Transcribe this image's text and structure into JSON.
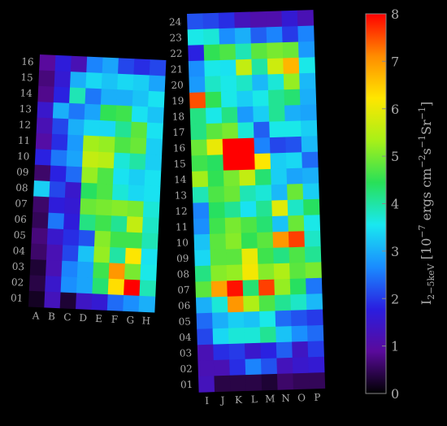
{
  "chart_data": [
    {
      "type": "heatmap",
      "title": "",
      "columns": [
        "A",
        "B",
        "C",
        "D",
        "E",
        "F",
        "G",
        "H"
      ],
      "rows": [
        "16",
        "15",
        "14",
        "13",
        "12",
        "11",
        "10",
        "09",
        "08",
        "07",
        "06",
        "05",
        "04",
        "03",
        "02",
        "01"
      ],
      "values": [
        [
          0.9,
          1.7,
          1.2,
          2.6,
          2.9,
          2.1,
          1.9,
          2.1
        ],
        [
          0.7,
          1.6,
          3.0,
          3.4,
          3.2,
          3.4,
          3.3,
          2.9
        ],
        [
          0.8,
          1.8,
          3.9,
          2.5,
          3.0,
          3.0,
          3.2,
          3.5
        ],
        [
          1.5,
          3.0,
          2.5,
          2.9,
          4.5,
          4.6,
          3.5,
          3.2
        ],
        [
          1.2,
          2.1,
          3.0,
          3.4,
          3.4,
          4.1,
          4.8,
          3.5
        ],
        [
          1.0,
          1.9,
          2.8,
          5.3,
          5.2,
          4.7,
          4.9,
          3.3
        ],
        [
          1.8,
          2.5,
          2.9,
          5.6,
          5.5,
          3.7,
          4.0,
          3.3
        ],
        [
          0.6,
          1.8,
          2.4,
          5.2,
          4.7,
          3.5,
          3.3,
          3.5
        ],
        [
          3.3,
          2.1,
          1.5,
          4.4,
          4.7,
          3.7,
          3.4,
          3.5
        ],
        [
          0.6,
          1.7,
          1.6,
          4.9,
          5.0,
          5.1,
          5.0,
          3.7
        ],
        [
          0.5,
          2.5,
          1.7,
          4.2,
          4.6,
          4.1,
          5.6,
          3.8
        ],
        [
          0.7,
          1.5,
          1.9,
          2.2,
          5.1,
          4.6,
          4.6,
          3.9
        ],
        [
          0.6,
          1.2,
          2.1,
          3.2,
          5.2,
          4.0,
          6.2,
          3.5
        ],
        [
          0.3,
          1.2,
          2.6,
          2.9,
          4.6,
          7.0,
          5.0,
          3.6
        ],
        [
          0.4,
          1.5,
          2.7,
          2.9,
          4.3,
          6.3,
          8.0,
          3.9
        ],
        [
          0.2,
          1.3,
          0.3,
          1.4,
          1.6,
          2.4,
          2.7,
          3.0
        ]
      ]
    },
    {
      "type": "heatmap",
      "title": "",
      "columns": [
        "I",
        "J",
        "K",
        "L",
        "M",
        "N",
        "O",
        "P"
      ],
      "rows": [
        "24",
        "23",
        "22",
        "21",
        "20",
        "19",
        "18",
        "17",
        "16",
        "15",
        "14",
        "13",
        "12",
        "11",
        "10",
        "09",
        "08",
        "07",
        "06",
        "05",
        "04",
        "03",
        "02",
        "01"
      ],
      "values": [
        [
          2.2,
          2.1,
          1.9,
          1.3,
          1.1,
          1.1,
          1.6,
          1.2
        ],
        [
          3.6,
          3.7,
          2.7,
          3.0,
          2.3,
          2.6,
          2.0,
          2.6
        ],
        [
          1.8,
          4.5,
          4.7,
          3.9,
          4.8,
          5.0,
          4.9,
          2.8
        ],
        [
          2.7,
          3.6,
          3.5,
          5.6,
          4.0,
          5.7,
          6.7,
          3.6
        ],
        [
          2.8,
          3.8,
          3.6,
          3.8,
          3.1,
          3.7,
          5.2,
          3.1
        ],
        [
          7.5,
          4.5,
          3.6,
          3.3,
          3.6,
          4.1,
          4.3,
          3.0
        ],
        [
          4.2,
          3.6,
          4.2,
          2.8,
          3.3,
          4.1,
          3.0,
          2.9
        ],
        [
          4.2,
          4.8,
          5.0,
          3.7,
          2.3,
          3.6,
          3.6,
          3.3
        ],
        [
          4.9,
          6.0,
          8.0,
          8.0,
          2.6,
          2.1,
          2.2,
          3.1
        ],
        [
          4.6,
          4.4,
          8.0,
          8.0,
          6.2,
          3.3,
          3.4,
          2.4
        ],
        [
          5.3,
          4.5,
          5.0,
          5.6,
          4.3,
          3.3,
          2.9,
          3.0
        ],
        [
          3.9,
          4.7,
          4.9,
          3.9,
          3.7,
          3.1,
          4.9,
          3.3
        ],
        [
          2.6,
          4.4,
          4.1,
          3.5,
          4.1,
          5.9,
          3.8,
          4.4
        ],
        [
          2.7,
          4.6,
          5.0,
          4.7,
          4.3,
          3.2,
          4.9,
          3.6
        ],
        [
          3.2,
          4.8,
          5.1,
          4.5,
          4.8,
          7.0,
          7.6,
          3.8
        ],
        [
          3.4,
          4.8,
          4.8,
          6.0,
          4.6,
          4.2,
          4.7,
          4.1
        ],
        [
          4.2,
          5.1,
          5.2,
          6.1,
          5.1,
          5.4,
          4.8,
          5.0
        ],
        [
          4.8,
          6.9,
          7.9,
          4.3,
          7.6,
          5.2,
          4.4,
          2.5
        ],
        [
          3.0,
          3.7,
          7.0,
          5.4,
          4.7,
          4.1,
          3.8,
          3.1
        ],
        [
          2.4,
          3.0,
          3.3,
          3.2,
          3.6,
          2.4,
          2.2,
          2.0
        ],
        [
          2.1,
          3.4,
          3.7,
          3.7,
          4.1,
          3.2,
          2.7,
          2.4
        ],
        [
          1.2,
          1.9,
          2.0,
          1.5,
          1.8,
          2.3,
          1.4,
          2.0
        ],
        [
          1.2,
          1.2,
          1.9,
          2.6,
          2.2,
          1.3,
          1.5,
          1.6
        ],
        [
          1.3,
          0.4,
          0.4,
          0.4,
          0.3,
          0.6,
          0.5,
          0.5
        ]
      ]
    }
  ],
  "colorbar": {
    "label": "I2-5keV [10-7 ergs cm-2s-1Sr-1]",
    "label_main": "I",
    "label_subscript": "2−5keV",
    "label_bracket_open": " [10",
    "label_exp1": "−7",
    "label_mid1": " ergs cm",
    "label_exp2": "−2",
    "label_mid2": "s",
    "label_exp3": "−1",
    "label_mid3": "Sr",
    "label_exp4": "−1",
    "label_bracket_close": "]",
    "ticks": [
      "0",
      "1",
      "2",
      "3",
      "4",
      "5",
      "6",
      "7",
      "8"
    ],
    "vmin": 0,
    "vmax": 8,
    "colormap": [
      "#000000",
      "#5a0a9c",
      "#2a1ee0",
      "#1a8cff",
      "#19e8f0",
      "#28e058",
      "#a8f018",
      "#ffe600",
      "#ff8c00",
      "#ff0000"
    ]
  }
}
